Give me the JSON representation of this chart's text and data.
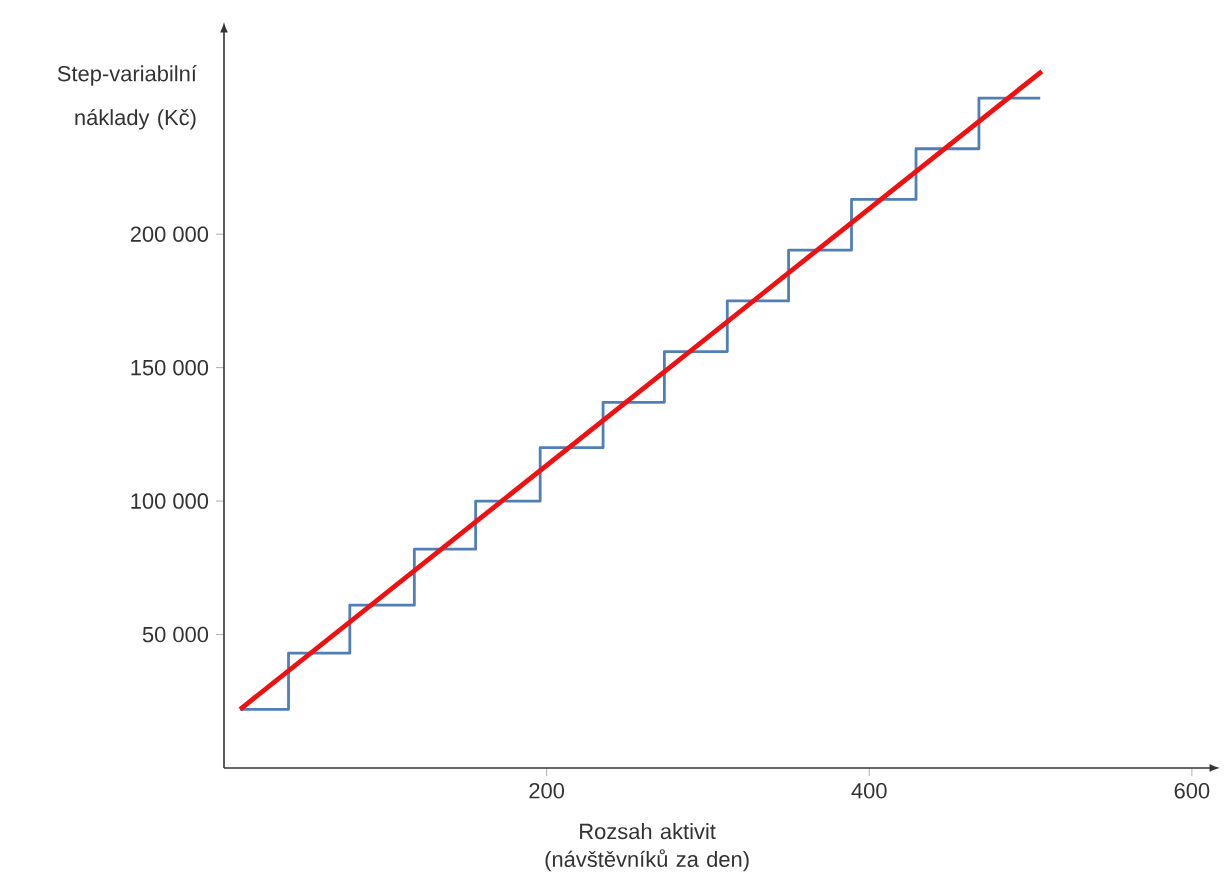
{
  "chart_data": {
    "type": "step",
    "xlabel": "Rozsah aktivit (návštěvníků za den)",
    "ylabel": "Step-variabilní náklady (Kč)",
    "xlim": [
      0,
      610
    ],
    "ylim": [
      0,
      275000
    ],
    "xticks": [
      200,
      400,
      600
    ],
    "yticks": [
      {
        "value": 50000,
        "label": "50 000"
      },
      {
        "value": 100000,
        "label": "100 000"
      },
      {
        "value": 150000,
        "label": "150 000"
      },
      {
        "value": 200000,
        "label": "200 000"
      }
    ],
    "grid": false,
    "series": [
      {
        "color": "#4f7fb5",
        "x": [
          10,
          40,
          78,
          118,
          156,
          196,
          235,
          273,
          312,
          350,
          389,
          429,
          468,
          506
        ],
        "values": [
          22000,
          43000,
          61000,
          82000,
          100000,
          120000,
          137000,
          156000,
          175000,
          194000,
          213000,
          232000,
          251000,
          251000
        ]
      },
      {
        "type": "line",
        "color": "#ee1111",
        "x": [
          10,
          507
        ],
        "values": [
          22000,
          261000
        ]
      }
    ]
  }
}
